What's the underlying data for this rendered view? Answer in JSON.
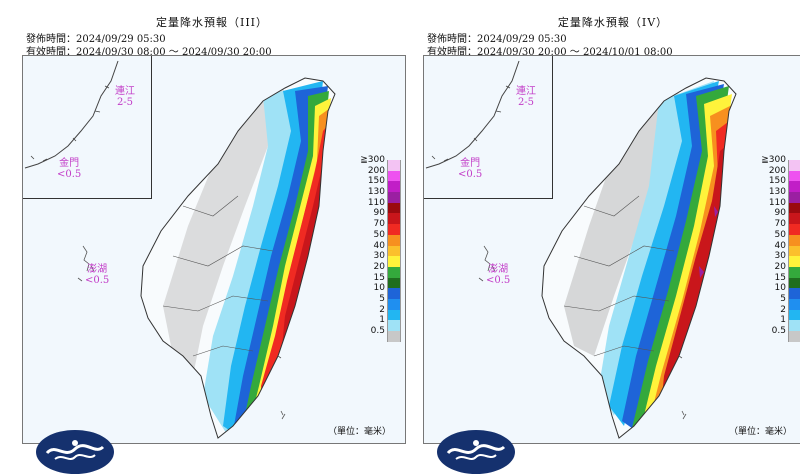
{
  "panels": [
    {
      "title": "定量降水預報（III）",
      "issued": "發佈時間：2024/09/29 05:30",
      "valid": "有效時間：2024/09/30 08:00 ～ 2024/09/30 20:00",
      "islands": [
        {
          "name": "連江",
          "value": "2-5"
        },
        {
          "name": "金門",
          "value": "<0.5"
        },
        {
          "name": "澎湖",
          "value": "<0.5"
        }
      ]
    },
    {
      "title": "定量降水預報（IV）",
      "issued": "發佈時間：2024/09/29 05:30",
      "valid": "有效時間：2024/09/30 20:00 ～ 2024/10/01 08:00",
      "islands": [
        {
          "name": "連江",
          "value": "2-5"
        },
        {
          "name": "金門",
          "value": "<0.5"
        },
        {
          "name": "澎湖",
          "value": "<0.5"
        }
      ]
    }
  ],
  "legend": {
    "unit": "（單位：毫米）",
    "levels": [
      {
        "label": "≧300",
        "color": "#f3c3f3"
      },
      {
        "label": "200",
        "color": "#ee52f0"
      },
      {
        "label": "150",
        "color": "#c11ec7"
      },
      {
        "label": "130",
        "color": "#9b1fa2"
      },
      {
        "label": "110",
        "color": "#9a0a0f"
      },
      {
        "label": "90",
        "color": "#c9161b"
      },
      {
        "label": "70",
        "color": "#f02a22"
      },
      {
        "label": "50",
        "color": "#f7901f"
      },
      {
        "label": "40",
        "color": "#fbc02c"
      },
      {
        "label": "30",
        "color": "#fff33b"
      },
      {
        "label": "20",
        "color": "#34a93c"
      },
      {
        "label": "15",
        "color": "#1f6e1f"
      },
      {
        "label": "10",
        "color": "#1e64d8"
      },
      {
        "label": "5",
        "color": "#1f8ff0"
      },
      {
        "label": "2",
        "color": "#22b6f2"
      },
      {
        "label": "1",
        "color": "#9fe2f6"
      },
      {
        "label": "0.5",
        "color": "#c8c8c8"
      }
    ]
  }
}
